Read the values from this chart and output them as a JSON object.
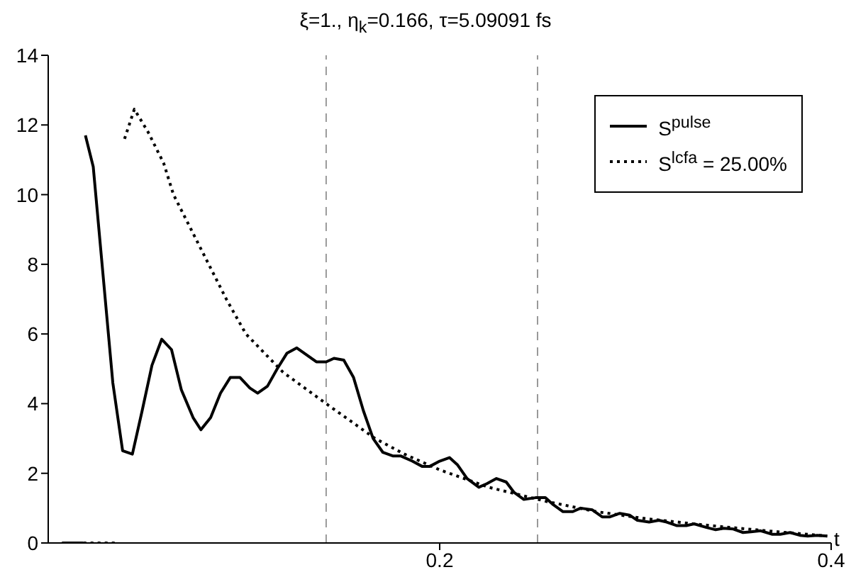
{
  "chart_data": {
    "type": "line",
    "title": "ξ=1., η$_{k}$=0.166, τ=5.09091 fs",
    "xlabel": "t",
    "xlim": [
      0,
      0.4
    ],
    "xticks": [
      0.2,
      0.4
    ],
    "ylim": [
      0,
      14
    ],
    "yticks": [
      0,
      2,
      4,
      6,
      8,
      10,
      12,
      14
    ],
    "grid": false,
    "legend": "top right",
    "marker": "none",
    "ref_lines": [
      {
        "axis": "x",
        "value": 0.142,
        "color": "#999999",
        "line_style": "dashed"
      },
      {
        "axis": "x",
        "value": 0.25,
        "color": "#999999",
        "line_style": "dashed"
      }
    ],
    "series": [
      {
        "name": "S$^{pulse}$",
        "color": "#000000",
        "line_style": "solid",
        "x": [
          0.007,
          0.018,
          0.0185,
          0.019,
          0.023,
          0.033,
          0.038,
          0.043,
          0.048,
          0.053,
          0.058,
          0.063,
          0.068,
          0.074,
          0.078,
          0.083,
          0.088,
          0.093,
          0.098,
          0.103,
          0.107,
          0.112,
          0.117,
          0.122,
          0.127,
          0.132,
          0.137,
          0.142,
          0.146,
          0.151,
          0.156,
          0.161,
          0.166,
          0.171,
          0.176,
          0.18,
          0.186,
          0.191,
          0.195,
          0.2,
          0.205,
          0.209,
          0.214,
          0.22,
          0.224,
          0.229,
          0.234,
          0.238,
          0.243,
          0.249,
          0.254,
          0.258,
          0.263,
          0.268,
          0.272,
          0.278,
          0.283,
          0.287,
          0.292,
          0.297,
          0.301,
          0.307,
          0.312,
          0.316,
          0.321,
          0.326,
          0.33,
          0.336,
          0.341,
          0.345,
          0.35,
          0.355,
          0.359,
          0.364,
          0.37,
          0.374,
          0.379,
          0.384,
          0.388,
          0.393,
          0.398
        ],
        "values": [
          0,
          0,
          null,
          11.7,
          10.8,
          4.6,
          2.65,
          2.55,
          3.8,
          5.1,
          5.85,
          5.55,
          4.4,
          3.6,
          3.25,
          3.6,
          4.3,
          4.75,
          4.75,
          4.45,
          4.3,
          4.5,
          5.0,
          5.45,
          5.6,
          5.4,
          5.2,
          5.2,
          5.3,
          5.25,
          4.75,
          3.8,
          3.0,
          2.6,
          2.5,
          2.5,
          2.35,
          2.2,
          2.2,
          2.35,
          2.45,
          2.25,
          1.85,
          1.6,
          1.7,
          1.85,
          1.75,
          1.45,
          1.25,
          1.3,
          1.3,
          1.1,
          0.9,
          0.9,
          1.0,
          0.95,
          0.75,
          0.75,
          0.85,
          0.8,
          0.65,
          0.6,
          0.65,
          0.6,
          0.5,
          0.5,
          0.55,
          0.45,
          0.38,
          0.42,
          0.4,
          0.3,
          0.32,
          0.35,
          0.25,
          0.25,
          0.3,
          0.22,
          0.2,
          0.22,
          0.2
        ]
      },
      {
        "name": "S$^{lcfa}$ = 25.00%",
        "color": "#000000",
        "line_style": "dotted",
        "x": [
          0.018,
          0.036,
          0.037,
          0.039,
          0.044,
          0.051,
          0.059,
          0.064,
          0.073,
          0.082,
          0.091,
          0.101,
          0.12,
          0.142,
          0.167,
          0.182,
          0.2,
          0.225,
          0.254,
          0.28,
          0.305,
          0.338,
          0.367,
          0.398
        ],
        "values": [
          0,
          0,
          null,
          11.6,
          12.45,
          11.8,
          10.9,
          10,
          9,
          8,
          7,
          6,
          4.9,
          4.0,
          3.0,
          2.55,
          2.1,
          1.6,
          1.2,
          0.9,
          0.7,
          0.5,
          0.35,
          0.2
        ]
      }
    ]
  }
}
